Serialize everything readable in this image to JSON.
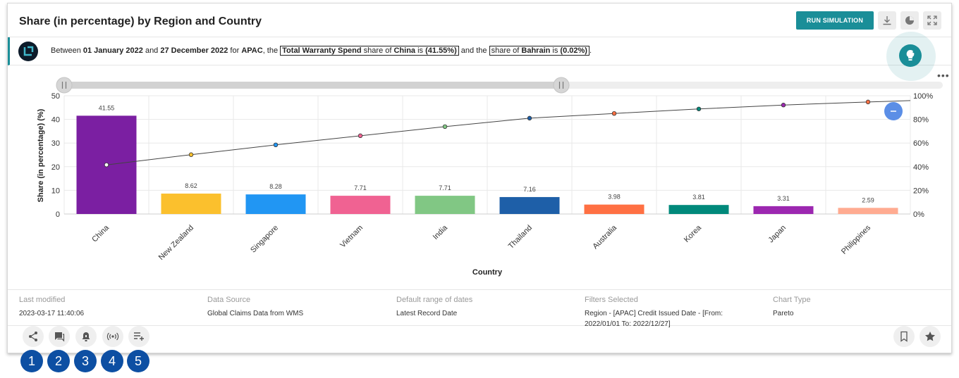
{
  "header": {
    "title": "Share (in percentage) by Region and Country",
    "run_simulation_label": "RUN SIMULATION"
  },
  "insight": {
    "p1": "Between ",
    "start_date": "01 January 2022",
    "p2": " and ",
    "end_date": "27 December 2022",
    "p3": " for ",
    "region": "APAC",
    "p4": ", the ",
    "metric": "Total Warranty Spend",
    "p5": " share of ",
    "top_country": "China",
    "p6": " is ",
    "top_value": "(41.55%)",
    "p7": " and the ",
    "p8": "share of ",
    "bottom_country": "Bahrain",
    "p9": " is ",
    "bottom_value": "(0.02%)",
    "p10": "."
  },
  "chart_data": {
    "type": "bar",
    "categories": [
      "China",
      "New Zealand",
      "Singapore",
      "Vietnam",
      "India",
      "Thailand",
      "Australia",
      "Korea",
      "Japan",
      "Philippines"
    ],
    "values": [
      41.55,
      8.62,
      8.28,
      7.71,
      7.71,
      7.16,
      3.98,
      3.81,
      3.31,
      2.59
    ],
    "value_labels": [
      "41.55",
      "8.62",
      "8.28",
      "7.71",
      "7.71",
      "7.16",
      "3.98",
      "3.81",
      "3.31",
      "2.59"
    ],
    "cumulative_percent": [
      41.55,
      50.17,
      58.45,
      66.16,
      73.87,
      81.03,
      85.01,
      88.82,
      92.13,
      94.72
    ],
    "bar_colors": [
      "#7b1fa2",
      "#fbc02d",
      "#2196f3",
      "#f06292",
      "#81c784",
      "#1e5fa8",
      "#ff7043",
      "#00897b",
      "#9c27b0",
      "#ffab91"
    ],
    "dot_colors": [
      "#ffffff",
      "#fbc02d",
      "#2196f3",
      "#f06292",
      "#81c784",
      "#1e5fa8",
      "#ff7043",
      "#00897b",
      "#9c27b0",
      "#ff7043"
    ],
    "ylabel": "Share (in percentage) (%)",
    "xlabel": "Country",
    "ylim": [
      0,
      50
    ],
    "y_ticks": [
      "0",
      "10",
      "20",
      "30",
      "40",
      "50"
    ],
    "y2lim": [
      0,
      100
    ],
    "y2_ticks": [
      "0%",
      "20%",
      "40%",
      "60%",
      "80%",
      "100%"
    ],
    "grid": true
  },
  "meta": {
    "last_modified_label": "Last modified",
    "last_modified_value": "2023-03-17 11:40:06",
    "data_source_label": "Data Source",
    "data_source_value": "Global Claims Data from WMS",
    "date_range_label": "Default range of dates",
    "date_range_value": "Latest Record Date",
    "filters_label": "Filters Selected",
    "filters_line1": "Region - [APAC] Credit Issued Date - [From:",
    "filters_line2": "2022/01/01 To: 2022/12/27]",
    "chart_type_label": "Chart Type",
    "chart_type_value": "Pareto"
  },
  "badges": [
    "1",
    "2",
    "3",
    "4",
    "5"
  ]
}
